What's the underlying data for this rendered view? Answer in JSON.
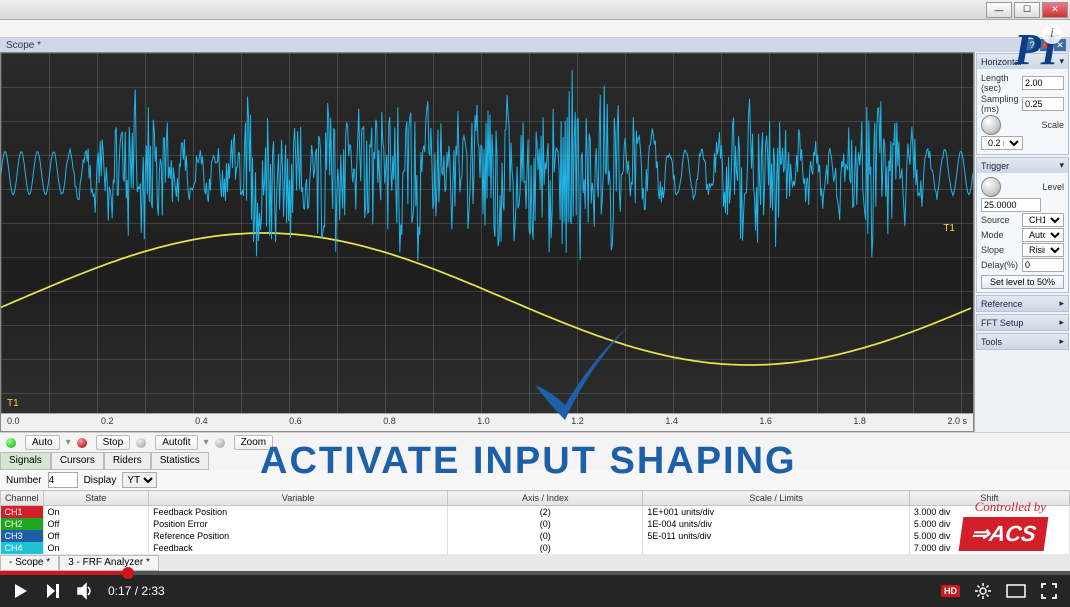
{
  "window": {
    "title": "",
    "min": "—",
    "max": "☐",
    "close": "✕"
  },
  "scope_tab": {
    "label": "Scope *"
  },
  "logo_pi": "PI",
  "info_icon": "i",
  "chart": {
    "type": "line",
    "background_color": "#222222",
    "grid_color": "#6a6a6a",
    "xlim": [
      0.0,
      2.0
    ],
    "xticks": [
      "0.0",
      "0.2",
      "0.4",
      "0.6",
      "0.8",
      "1.0",
      "1.2",
      "1.4",
      "1.6",
      "1.8",
      "2.0 s"
    ],
    "xtick_fontsize": 9,
    "series": {
      "signal": {
        "color": "#1fb4e6",
        "stroke_width": 1
      },
      "reference": {
        "color": "#e6e24a",
        "stroke_width": 1.5
      }
    },
    "marker_T1_right": "T1",
    "marker_T1_left": "T1"
  },
  "panels": {
    "horizontal": {
      "title": "Horizontal",
      "length_label": "Length (sec)",
      "length_value": "2.00",
      "sampling_label": "Sampling (ms)",
      "sampling_value": "0.25",
      "scale_label": "Scale",
      "scale_value": "0.2 sec/…"
    },
    "trigger": {
      "title": "Trigger",
      "level_label": "Level",
      "level_value": "25.0000",
      "source_label": "Source",
      "source_value": "CH1",
      "mode_label": "Mode",
      "mode_value": "Auto",
      "slope_label": "Slope",
      "slope_value": "Rising",
      "delay_label": "Delay(%)",
      "delay_value": "0",
      "set_btn": "Set level to 50%"
    },
    "reference": {
      "title": "Reference"
    },
    "fft": {
      "title": "FFT Setup"
    },
    "tools": {
      "title": "Tools"
    }
  },
  "toolbar": {
    "auto": "Auto",
    "stop": "Stop",
    "autofit": "Autofit",
    "zoom": "Zoom"
  },
  "subtabs": [
    "Signals",
    "Cursors",
    "Riders",
    "Statistics"
  ],
  "sig_controls": {
    "number_label": "Number",
    "number_value": "4",
    "display_label": "Display",
    "display_value": "YT"
  },
  "table": {
    "columns": [
      "Channel",
      "State",
      "Variable",
      "Axis / Index",
      "Scale / Limits",
      "Shift"
    ],
    "rows": [
      {
        "ch": "CH1",
        "ch_bg": "#d21f2a",
        "state": "On",
        "var": "Feedback Position",
        "idx": "(2)",
        "scale": "1E+001 units/div",
        "shift": "3.000 div"
      },
      {
        "ch": "CH2",
        "ch_bg": "#1fa81f",
        "state": "Off",
        "var": "Position Error",
        "idx": "(0)",
        "scale": "1E-004 units/div",
        "shift": "5.000 div"
      },
      {
        "ch": "CH3",
        "ch_bg": "#1f5fa8",
        "state": "Off",
        "var": "Reference Position",
        "idx": "(0)",
        "scale": "5E-011 units/div",
        "shift": "5.000 div"
      },
      {
        "ch": "CH4",
        "ch_bg": "#1fc4d4",
        "state": "On",
        "var": "Feedback",
        "idx": "(0)",
        "scale": "",
        "shift": "7.000 div"
      }
    ]
  },
  "overlay": {
    "checkmark_color": "#1d5fa8",
    "text": "ACTIVATE INPUT SHAPING"
  },
  "acs": {
    "ctrl": "Controlled by",
    "logo": "ACS"
  },
  "bottom_tabs": [
    "- Scope *",
    "3 - FRF Analyzer *"
  ],
  "video": {
    "progress_pct": 12,
    "time_current": "0:17",
    "time_total": "2:33",
    "hd": "HD"
  }
}
